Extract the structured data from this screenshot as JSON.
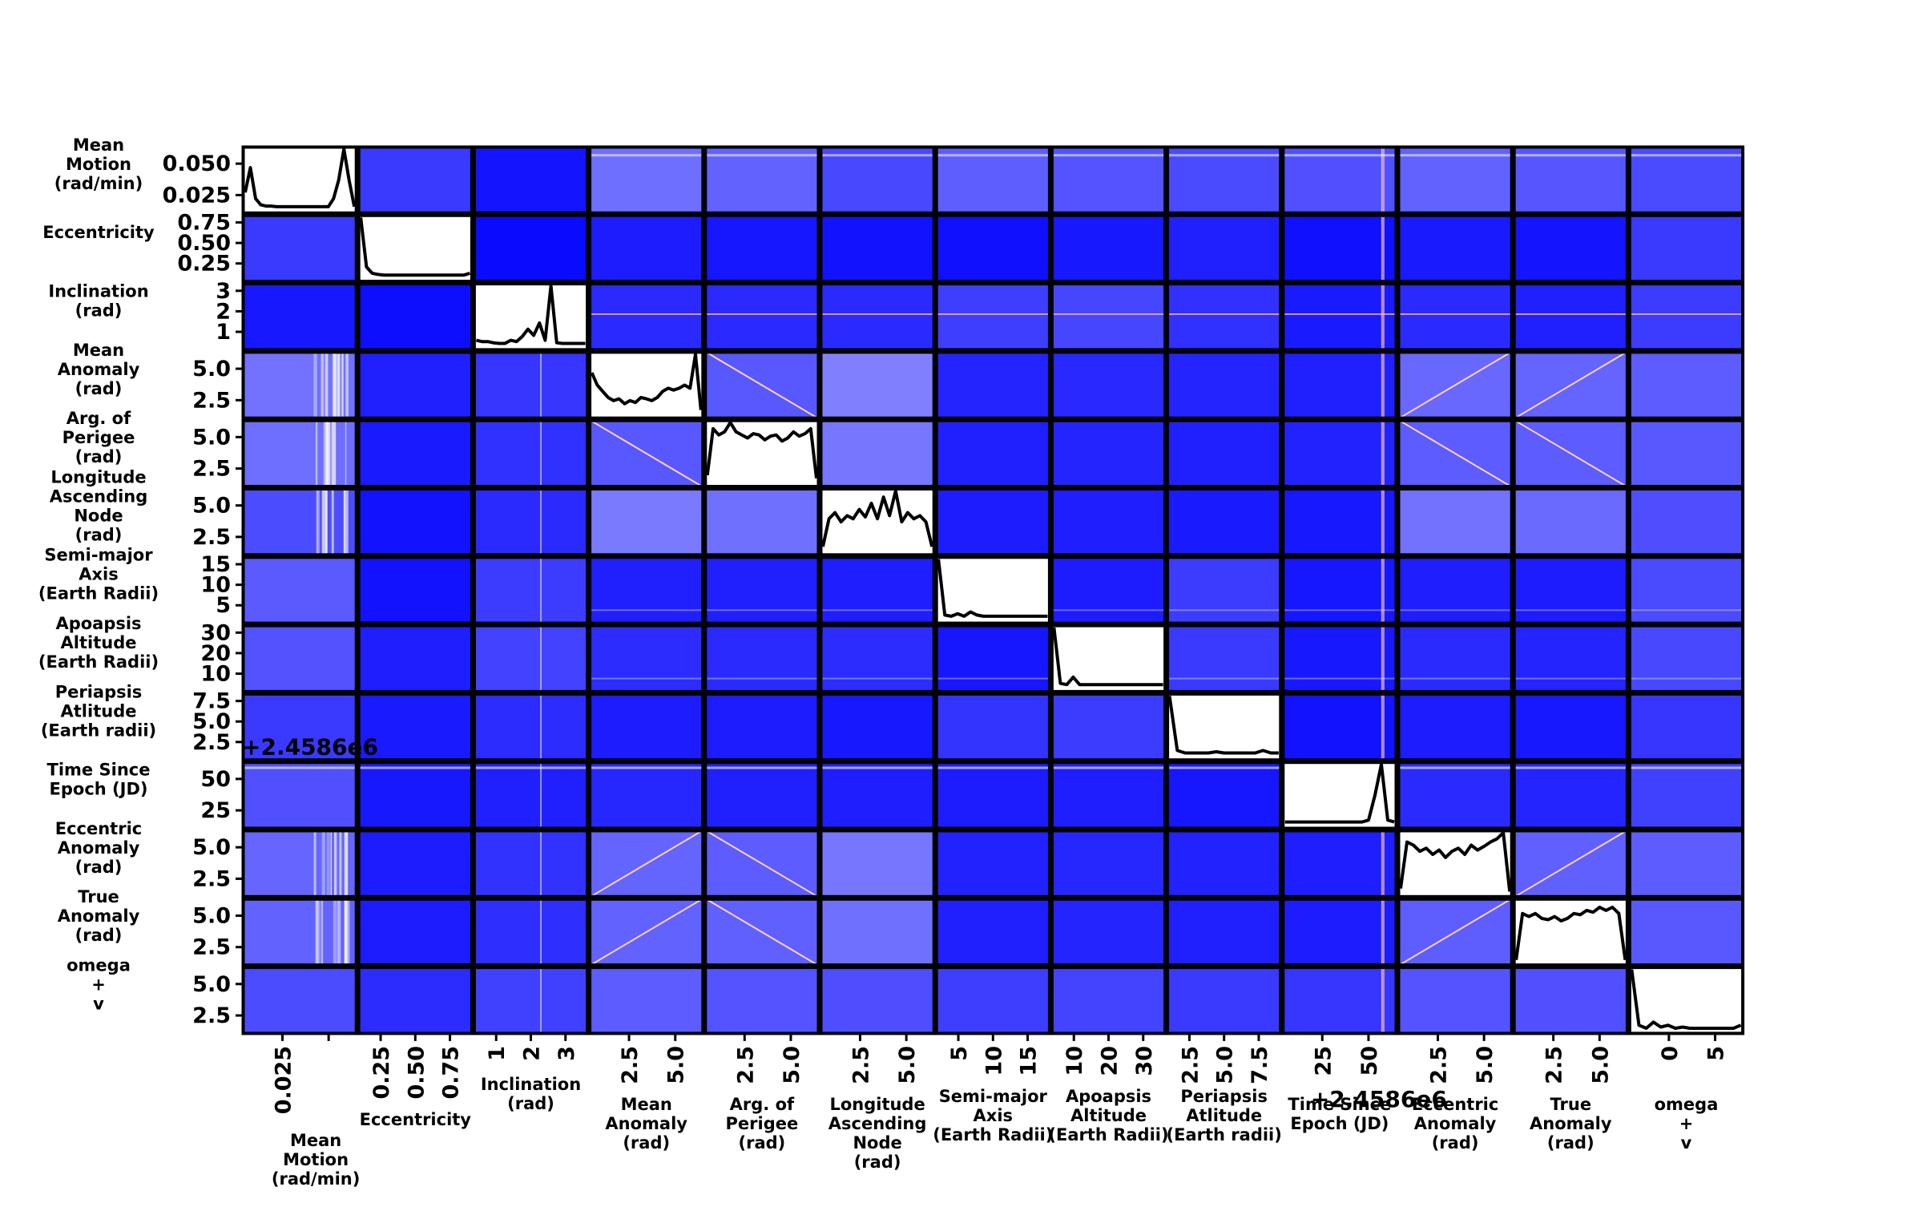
{
  "chart_data": {
    "type": "scatter-matrix",
    "variables": [
      {
        "id": "mean_motion",
        "label": [
          "Mean",
          "Motion",
          "(rad/min)"
        ],
        "y_ticks": [
          "0.050",
          "0.025"
        ],
        "x_ticks": [
          "0.025",
          ""
        ],
        "offset_text": ""
      },
      {
        "id": "eccentricity",
        "label": [
          "Eccentricity"
        ],
        "y_ticks": [
          "0.75",
          "0.50",
          "0.25"
        ],
        "x_ticks": [
          "0.25",
          "0.50",
          "0.75"
        ],
        "offset_text": ""
      },
      {
        "id": "inclination",
        "label": [
          "Inclination",
          "(rad)"
        ],
        "y_ticks": [
          "3",
          "2",
          "1"
        ],
        "x_ticks": [
          "1",
          "2",
          "3"
        ],
        "offset_text": ""
      },
      {
        "id": "mean_anomaly",
        "label": [
          "Mean",
          "Anomaly",
          "(rad)"
        ],
        "y_ticks": [
          "5.0",
          "2.5"
        ],
        "x_ticks": [
          "2.5",
          "5.0"
        ],
        "offset_text": ""
      },
      {
        "id": "arg_perigee",
        "label": [
          "Arg. of",
          "Perigee",
          "(rad)"
        ],
        "y_ticks": [
          "5.0",
          "2.5"
        ],
        "x_ticks": [
          "2.5",
          "5.0"
        ],
        "offset_text": ""
      },
      {
        "id": "longitude_ascending_node",
        "label": [
          "Longitude",
          "Ascending",
          "Node",
          "(rad)"
        ],
        "y_ticks": [
          "5.0",
          "2.5"
        ],
        "x_ticks": [
          "2.5",
          "5.0"
        ],
        "offset_text": ""
      },
      {
        "id": "semi_major_axis",
        "label": [
          "Semi-major",
          "Axis",
          "(Earth Radii)"
        ],
        "y_ticks": [
          "15",
          "10",
          "5"
        ],
        "x_ticks": [
          "5",
          "10",
          "15"
        ],
        "offset_text": ""
      },
      {
        "id": "apoapsis_altitude",
        "label": [
          "Apoapsis",
          "Altitude",
          "(Earth Radii)"
        ],
        "y_ticks": [
          "30",
          "20",
          "10"
        ],
        "x_ticks": [
          "10",
          "20",
          "30"
        ],
        "offset_text": ""
      },
      {
        "id": "periapsis_altitude",
        "label": [
          "Periapsis",
          "Atlitude",
          "(Earth radii)"
        ],
        "y_ticks": [
          "7.5",
          "5.0",
          "2.5"
        ],
        "x_ticks": [
          "2.5",
          "5.0",
          "7.5"
        ],
        "offset_text": ""
      },
      {
        "id": "time_since_epoch",
        "label": [
          "Time Since",
          "Epoch (JD)"
        ],
        "y_ticks": [
          "50",
          "25"
        ],
        "x_ticks": [
          "25",
          "50"
        ],
        "offset_text": "+2.4586e6"
      },
      {
        "id": "eccentric_anomaly",
        "label": [
          "Eccentric",
          "Anomaly",
          "(rad)"
        ],
        "y_ticks": [
          "5.0",
          "2.5"
        ],
        "x_ticks": [
          "2.5",
          "5.0"
        ],
        "offset_text": ""
      },
      {
        "id": "true_anomaly",
        "label": [
          "True",
          "Anomaly",
          "(rad)"
        ],
        "y_ticks": [
          "5.0",
          "2.5"
        ],
        "x_ticks": [
          "2.5",
          "5.0"
        ],
        "offset_text": ""
      },
      {
        "id": "omega_plus_v",
        "label": [
          "omega",
          "+",
          "v"
        ],
        "y_ticks": [
          "5.0",
          "2.5"
        ],
        "x_ticks": [
          "0",
          "5"
        ],
        "offset_text": ""
      }
    ],
    "diagonal": "kde",
    "off_diagonal": "density",
    "cell_colors": [
      [
        "#ffffff",
        "#3a3aff",
        "#1414ff",
        "#6e6eff",
        "#6262ff",
        "#4848ff",
        "#5e5eff",
        "#5454ff",
        "#4a4aff",
        "#5050ff",
        "#6262ff",
        "#5656ff",
        "#4a4aff"
      ],
      [
        "#3a3aff",
        "#ffffff",
        "#0a0aff",
        "#1c1cff",
        "#1616ff",
        "#1212ff",
        "#1010ff",
        "#1818ff",
        "#2020ff",
        "#1010ff",
        "#1a1aff",
        "#1414ff",
        "#3a3aff"
      ],
      [
        "#1818ff",
        "#0e0eff",
        "#ffffff",
        "#2a2aff",
        "#2a2aff",
        "#2a2aff",
        "#3e3eff",
        "#4646ff",
        "#3030ff",
        "#1a1aff",
        "#2a2aff",
        "#2020ff",
        "#3c3cff"
      ],
      [
        "#7272ff",
        "#2020ff",
        "#3636ff",
        "#ffffff",
        "#5858ff",
        "#8080ff",
        "#2424ff",
        "#2828ff",
        "#2424ff",
        "#2020ff",
        "#6868ff",
        "#6464ff",
        "#5c5cff"
      ],
      [
        "#6e6eff",
        "#1a1aff",
        "#3030ff",
        "#5858ff",
        "#ffffff",
        "#7676ff",
        "#2020ff",
        "#2424ff",
        "#2020ff",
        "#2222ff",
        "#5c5cff",
        "#5c5cff",
        "#5858ff"
      ],
      [
        "#4c4cff",
        "#1212ff",
        "#2a2aff",
        "#7a7aff",
        "#7070ff",
        "#ffffff",
        "#1c1cff",
        "#1e1eff",
        "#1a1aff",
        "#1818ff",
        "#7272ff",
        "#6a6aff",
        "#4e4eff"
      ],
      [
        "#5a5aff",
        "#1212ff",
        "#3c3cff",
        "#2020ff",
        "#2020ff",
        "#1e1eff",
        "#ffffff",
        "#1c1cff",
        "#3c3cff",
        "#1616ff",
        "#1e1eff",
        "#1c1cff",
        "#4a4aff"
      ],
      [
        "#5252ff",
        "#1e1eff",
        "#4242ff",
        "#2c2cff",
        "#2a2aff",
        "#2c2cff",
        "#1616ff",
        "#ffffff",
        "#3a3aff",
        "#1818ff",
        "#2a2aff",
        "#2424ff",
        "#4848ff"
      ],
      [
        "#3a3aff",
        "#1a1aff",
        "#2c2cff",
        "#1c1cff",
        "#1c1cff",
        "#1818ff",
        "#3434ff",
        "#3c3cff",
        "#ffffff",
        "#1212ff",
        "#1c1cff",
        "#1818ff",
        "#3636ff"
      ],
      [
        "#5050ff",
        "#1818ff",
        "#2020ff",
        "#2626ff",
        "#2020ff",
        "#1e1eff",
        "#1c1cff",
        "#1e1eff",
        "#1616ff",
        "#ffffff",
        "#2a2aff",
        "#2424ff",
        "#4040ff"
      ],
      [
        "#6666ff",
        "#1c1cff",
        "#3232ff",
        "#6464ff",
        "#5c5cff",
        "#7676ff",
        "#2222ff",
        "#2626ff",
        "#2222ff",
        "#1e1eff",
        "#ffffff",
        "#6060ff",
        "#5c5cff"
      ],
      [
        "#6262ff",
        "#1c1cff",
        "#2e2eff",
        "#6262ff",
        "#6060ff",
        "#7070ff",
        "#2020ff",
        "#2424ff",
        "#2020ff",
        "#1c1cff",
        "#5e5eff",
        "#ffffff",
        "#5858ff"
      ],
      [
        "#4c4cff",
        "#2c2cff",
        "#4040ff",
        "#5c5cff",
        "#5454ff",
        "#4e4eff",
        "#3e3eff",
        "#4444ff",
        "#3a3aff",
        "#3636ff",
        "#5454ff",
        "#5050ff",
        "#ffffff"
      ]
    ]
  }
}
